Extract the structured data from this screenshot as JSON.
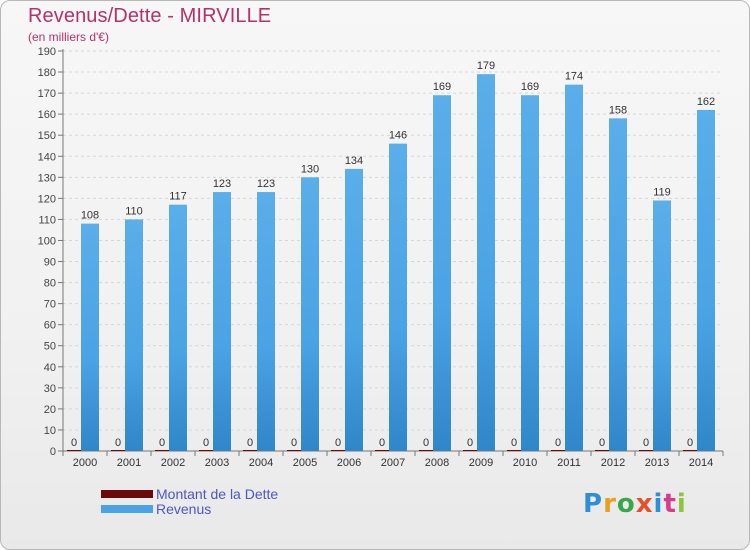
{
  "header": {
    "title": "Revenus/Dette - MIRVILLE",
    "subtitle": "(en milliers d'€)"
  },
  "legend": {
    "items": [
      {
        "label": "Montant de la Dette",
        "color": "#6b0a0a"
      },
      {
        "label": "Revenus",
        "color": "#4aa3e4"
      }
    ]
  },
  "logo": {
    "text": "Proxiti",
    "colors": [
      "#2e8fd6",
      "#e8a020",
      "#3aa64a",
      "#e84e2a",
      "#2e8fd6",
      "#d63c8c",
      "#8cc63e"
    ]
  },
  "chart_data": {
    "type": "bar",
    "title": "Revenus/Dette - MIRVILLE",
    "subtitle": "(en milliers d'€)",
    "categories": [
      "2000",
      "2001",
      "2002",
      "2003",
      "2004",
      "2005",
      "2006",
      "2007",
      "2008",
      "2009",
      "2010",
      "2011",
      "2012",
      "2013",
      "2014"
    ],
    "series": [
      {
        "name": "Montant de la Dette",
        "color": "#6b0a0a",
        "values": [
          0,
          0,
          0,
          0,
          0,
          0,
          0,
          0,
          0,
          0,
          0,
          0,
          0,
          0,
          0
        ]
      },
      {
        "name": "Revenus",
        "color": "#4aa3e4",
        "values": [
          108,
          110,
          117,
          123,
          123,
          130,
          134,
          146,
          169,
          179,
          169,
          174,
          158,
          119,
          162
        ]
      }
    ],
    "ylim": [
      0,
      190
    ],
    "yticks": [
      0,
      10,
      20,
      30,
      40,
      50,
      60,
      70,
      80,
      90,
      100,
      110,
      120,
      130,
      140,
      150,
      160,
      170,
      180,
      190
    ],
    "grid": true,
    "legend_position": "bottom-left"
  }
}
